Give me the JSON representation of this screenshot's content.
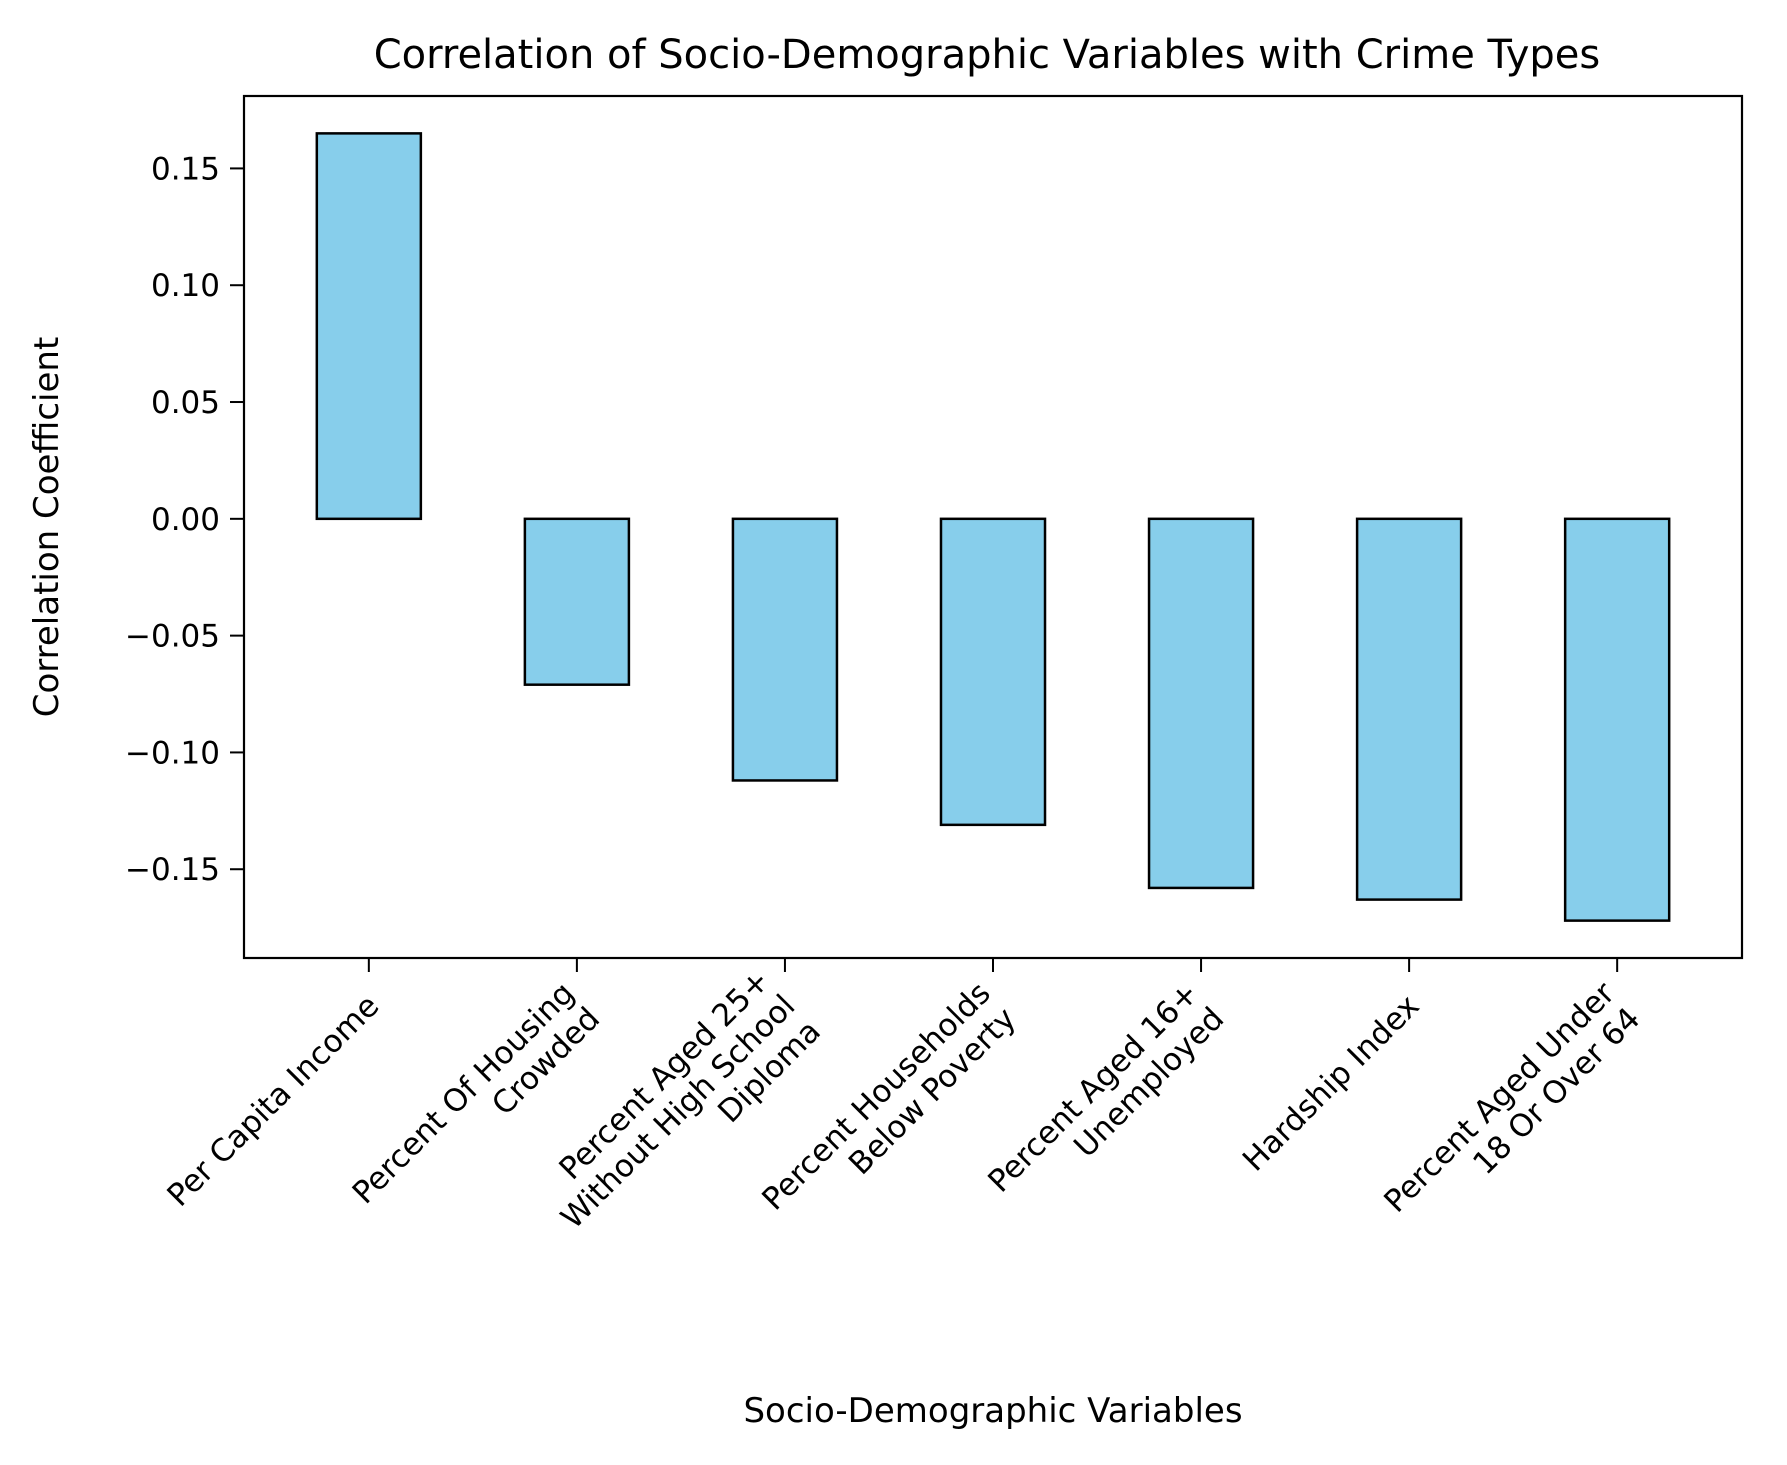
{
  "chart_data": {
    "type": "bar",
    "title": "Correlation of Socio-Demographic Variables with Crime Types",
    "xlabel": "Socio-Demographic Variables",
    "ylabel": "Correlation Coefficient",
    "categories": [
      [
        "Per Capita Income"
      ],
      [
        "Percent Of Housing",
        "Crowded"
      ],
      [
        "Percent Aged 25+",
        "Without High School",
        "Diploma"
      ],
      [
        "Percent Households",
        "Below Poverty"
      ],
      [
        "Percent Aged 16+",
        "Unemployed"
      ],
      [
        "Hardship Index"
      ],
      [
        "Percent Aged Under",
        "18 Or Over 64"
      ]
    ],
    "values": [
      0.165,
      -0.071,
      -0.112,
      -0.131,
      -0.158,
      -0.163,
      -0.172
    ],
    "ylim": [
      -0.188,
      0.181
    ],
    "yticks": [
      0.15,
      0.1,
      0.05,
      0.0,
      -0.05,
      -0.1,
      -0.15
    ],
    "ytick_labels": [
      "0.15",
      "0.10",
      "0.05",
      "0.00",
      "−0.05",
      "−0.10",
      "−0.15"
    ],
    "bar_color": "#87CEEB",
    "edge_color": "#000000",
    "grid": false,
    "legend": "none"
  }
}
